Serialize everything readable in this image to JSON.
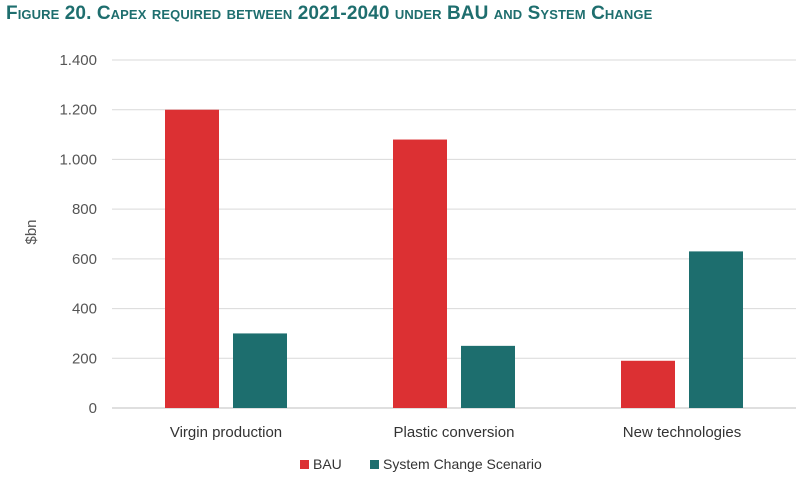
{
  "figure_title": "Figure 20. Capex required between 2021-2040 under BAU and System Change",
  "colors": {
    "bau": "#dc3033",
    "system_change": "#1d6e6e",
    "title": "#1e6e6e",
    "grid": "#d9d9d9"
  },
  "chart_data": {
    "type": "bar",
    "title": "Figure 20. Capex required between 2021-2040 under BAU and System Change",
    "xlabel": "",
    "ylabel": "$bn",
    "categories": [
      "Virgin production",
      "Plastic conversion",
      "New technologies"
    ],
    "series": [
      {
        "name": "BAU",
        "values": [
          1200,
          1080,
          190
        ],
        "color": "#dc3033"
      },
      {
        "name": "System Change Scenario",
        "values": [
          300,
          250,
          630
        ],
        "color": "#1d6e6e"
      }
    ],
    "ylim": [
      0,
      1400
    ],
    "yticks": [
      0,
      200,
      400,
      600,
      800,
      1000,
      1200,
      1400
    ],
    "ytick_labels": [
      "0",
      "200",
      "400",
      "600",
      "800",
      "1.000",
      "1.200",
      "1.400"
    ],
    "grid": true,
    "legend_position": "bottom"
  }
}
